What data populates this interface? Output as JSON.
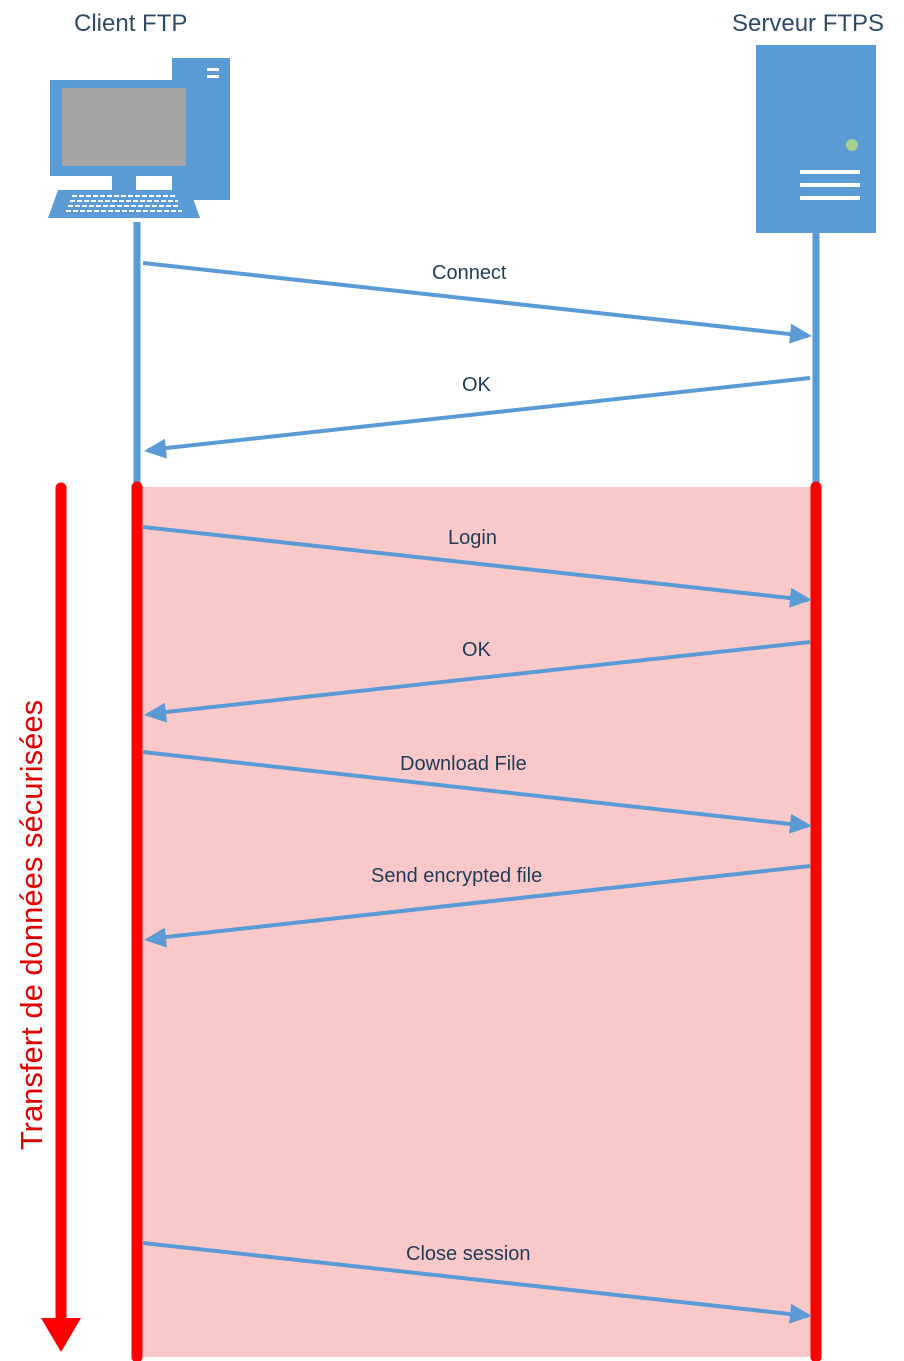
{
  "participants": {
    "client": {
      "label": "Client FTP",
      "icon": "desktop-computer-icon"
    },
    "server": {
      "label": "Serveur FTPS",
      "icon": "server-tower-icon"
    }
  },
  "secure_zone": {
    "label": "Transfert de données sécurisées",
    "color": "#f9c9c9",
    "line_color": "#ff0000"
  },
  "lifeline_color": "#5b9bd5",
  "messages": [
    {
      "label": "Connect",
      "from": "client",
      "to": "server"
    },
    {
      "label": "OK",
      "from": "server",
      "to": "client"
    },
    {
      "label": "Login",
      "from": "client",
      "to": "server"
    },
    {
      "label": "OK",
      "from": "server",
      "to": "client"
    },
    {
      "label": "Download File",
      "from": "client",
      "to": "server"
    },
    {
      "label": "Send encrypted file",
      "from": "server",
      "to": "client"
    },
    {
      "label": "Close session",
      "from": "client",
      "to": "server"
    }
  ]
}
